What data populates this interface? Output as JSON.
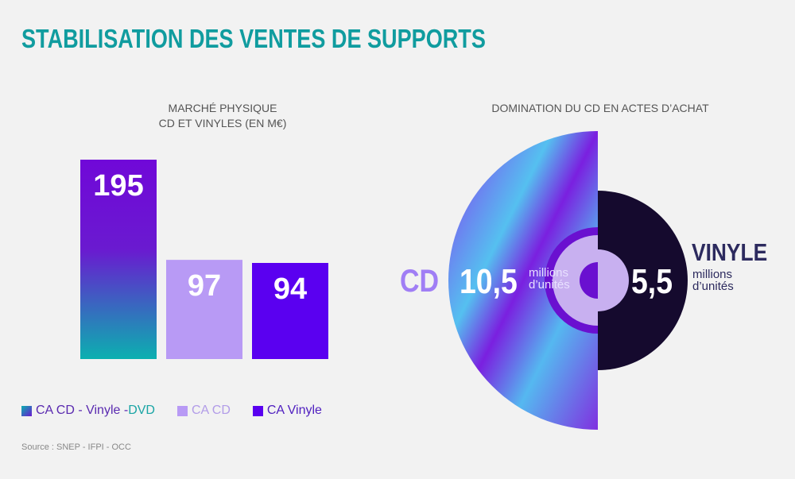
{
  "title": "STABILISATION DES VENTES DE SUPPORTS",
  "chart_data": [
    {
      "type": "bar",
      "title_line1": "MARCHÉ PHYSIQUE",
      "title_line2": "CD ET VINYLES (EN M€)",
      "categories": [
        "CA CD - Vinyle - DVD",
        "CA CD",
        "CA Vinyle"
      ],
      "values": [
        195,
        97,
        94
      ],
      "labels": [
        "195",
        "97",
        "94"
      ],
      "colors": [
        "#7010d8",
        "#b89af5",
        "#5a00f0"
      ],
      "ylim": [
        0,
        200
      ],
      "legend": [
        {
          "a": "CA CD - Vinyle - ",
          "b": "DVD"
        },
        {
          "a": "CA CD"
        },
        {
          "a": "CA Vinyle"
        }
      ]
    },
    {
      "type": "pie",
      "title": "DOMINATION DU CD EN ACTES D’ACHAT",
      "categories": [
        "CD",
        "VINYLE"
      ],
      "values": [
        10.5,
        5.5
      ],
      "labels": [
        "10,5",
        "5,5"
      ],
      "unit": "millions",
      "unit2": "d’unités"
    }
  ],
  "source": "Source : SNEP - IFPI - OCC"
}
